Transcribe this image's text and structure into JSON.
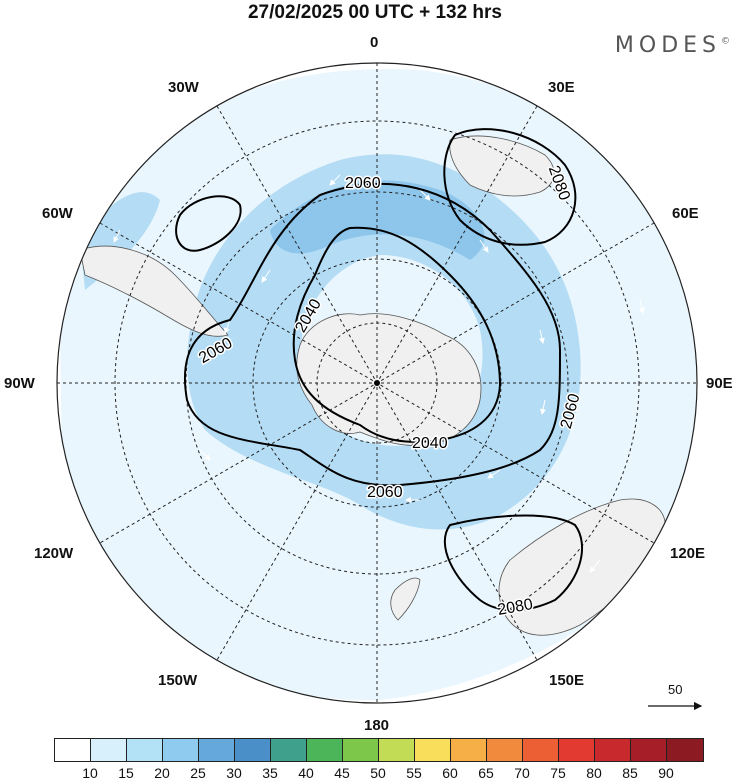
{
  "header": {
    "title": "27/02/2025  00 UTC  + 132 hrs",
    "brand": "MODES",
    "brand_mark": "©"
  },
  "map": {
    "projection": "south polar stereographic",
    "longitude_labels": {
      "top": "0",
      "top_right": "30E",
      "upper_right": "60E",
      "right": "90E",
      "lower_right": "120E",
      "bottom_right": "150E",
      "bottom": "180",
      "bottom_left": "150W",
      "lower_left": "120W",
      "left": "90W",
      "upper_left": "60W",
      "top_left": "30W"
    },
    "contour_labels": [
      "2060",
      "2080",
      "2040",
      "2060",
      "2060",
      "2040",
      "2060",
      "2080"
    ],
    "reference_vector": "50",
    "colors": {
      "land": "#f0f0f0",
      "ocean": "#ffffff",
      "shade_light": "#d9effb",
      "shade_mid": "#b4ddf5",
      "shade_dark": "#8ec5ea",
      "contour": "#000000"
    }
  },
  "colorbar": {
    "labels": [
      "10",
      "15",
      "20",
      "25",
      "30",
      "35",
      "40",
      "45",
      "50",
      "55",
      "60",
      "65",
      "70",
      "75",
      "80",
      "85",
      "90"
    ],
    "colors": [
      "#ffffff",
      "#d7f0fb",
      "#b3e1f6",
      "#8ecbee",
      "#65a9dc",
      "#4a8fc8",
      "#3fa08c",
      "#4cb55a",
      "#7dc84a",
      "#c2dc55",
      "#f8de5a",
      "#f6ae47",
      "#f18a3c",
      "#ec5f35",
      "#e23a31",
      "#c8292d",
      "#a51e28",
      "#8c1a22"
    ]
  }
}
